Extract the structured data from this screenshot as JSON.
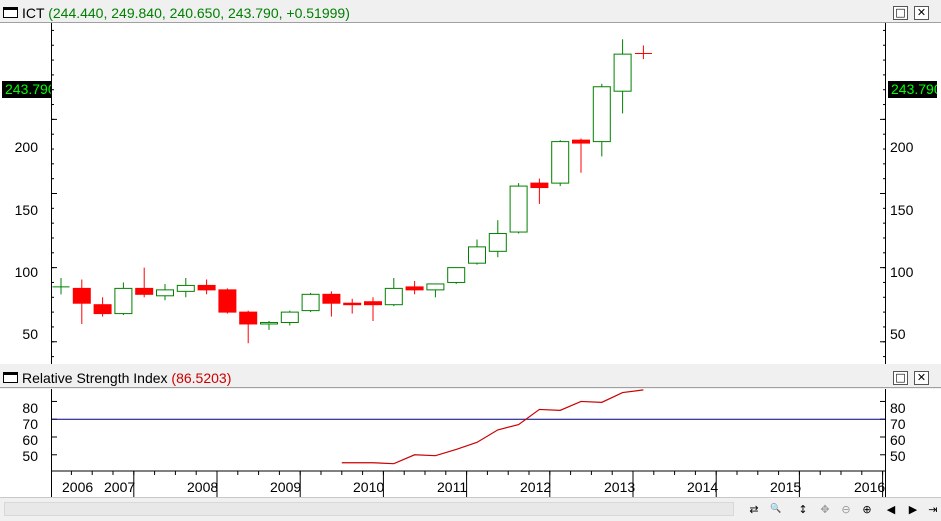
{
  "main_pane": {
    "symbol": "ICT",
    "ohlc_text": "(244.440, 249.840, 240.650, 243.790, +0.51999)",
    "last_price_label": "243.790",
    "y_ticks": [
      "200",
      "150",
      "100",
      "50"
    ],
    "buttons": {
      "restore": "□",
      "close": "✕"
    }
  },
  "rsi_pane": {
    "title": "Relative Strength Index",
    "value_text": "(86.5203)",
    "y_ticks": [
      "80",
      "70",
      "60",
      "50"
    ],
    "reference_level": 70,
    "buttons": {
      "restore": "□",
      "close": "✕"
    }
  },
  "x_axis": {
    "year_labels": [
      "2006",
      "2007",
      "2008",
      "2009",
      "2010",
      "2011",
      "2012",
      "2013",
      "2014",
      "2015",
      "2016"
    ]
  },
  "status_bar": {
    "buttons": [
      {
        "name": "sync-icon",
        "glyph": "⇄"
      },
      {
        "name": "zoom-icon",
        "glyph": "🔍"
      },
      {
        "name": "vertical-resize-icon",
        "glyph": "↕"
      },
      {
        "name": "pan-icon",
        "glyph": "✥"
      },
      {
        "name": "zoom-out-icon",
        "glyph": "⊖"
      },
      {
        "name": "zoom-in-icon",
        "glyph": "⊕"
      },
      {
        "name": "first-icon",
        "glyph": "◀"
      },
      {
        "name": "scroll-left-icon",
        "glyph": "◀"
      },
      {
        "name": "scroll-right-icon",
        "glyph": "▶"
      },
      {
        "name": "last-icon",
        "glyph": "⇥"
      }
    ]
  },
  "colors": {
    "up_candle": "#008000",
    "down_candle": "#ff0000",
    "rsi_line": "#cc0000",
    "reference_line": "#000080",
    "title_green": "#008000",
    "title_red": "#cc0000"
  },
  "chart_data": [
    {
      "type": "candlestick",
      "title": "ICT",
      "ylim": [
        35,
        265
      ],
      "y_ticks": [
        50,
        100,
        150,
        200
      ],
      "x_axis": "quarterly",
      "candles": [
        {
          "date": "2006 Q1",
          "o": 87,
          "h": 93,
          "l": 82,
          "c": 87
        },
        {
          "date": "2006 Q2",
          "o": 86,
          "h": 92,
          "l": 62,
          "c": 76
        },
        {
          "date": "2006 Q3",
          "o": 75,
          "h": 80,
          "l": 67,
          "c": 69
        },
        {
          "date": "2006 Q4",
          "o": 69,
          "h": 90,
          "l": 68,
          "c": 86
        },
        {
          "date": "2007 Q1",
          "o": 86,
          "h": 100,
          "l": 80,
          "c": 82
        },
        {
          "date": "2007 Q2",
          "o": 81,
          "h": 89,
          "l": 78,
          "c": 85
        },
        {
          "date": "2007 Q3",
          "o": 84,
          "h": 93,
          "l": 80,
          "c": 88
        },
        {
          "date": "2007 Q4",
          "o": 88,
          "h": 92,
          "l": 82,
          "c": 85
        },
        {
          "date": "2008 Q1",
          "o": 85,
          "h": 86,
          "l": 69,
          "c": 70
        },
        {
          "date": "2008 Q2",
          "o": 70,
          "h": 71,
          "l": 49,
          "c": 62
        },
        {
          "date": "2008 Q3",
          "o": 62,
          "h": 64,
          "l": 58,
          "c": 63
        },
        {
          "date": "2008 Q4",
          "o": 63,
          "h": 71,
          "l": 61,
          "c": 70
        },
        {
          "date": "2009 Q1",
          "o": 71,
          "h": 83,
          "l": 70,
          "c": 82
        },
        {
          "date": "2009 Q2",
          "o": 82,
          "h": 84,
          "l": 67,
          "c": 76
        },
        {
          "date": "2009 Q3",
          "o": 76,
          "h": 79,
          "l": 69,
          "c": 75
        },
        {
          "date": "2009 Q4",
          "o": 77,
          "h": 80,
          "l": 64,
          "c": 75
        },
        {
          "date": "2010 Q1",
          "o": 75,
          "h": 93,
          "l": 74,
          "c": 86
        },
        {
          "date": "2010 Q2",
          "o": 87,
          "h": 91,
          "l": 82,
          "c": 85
        },
        {
          "date": "2010 Q3",
          "o": 85,
          "h": 89,
          "l": 80,
          "c": 89
        },
        {
          "date": "2010 Q4",
          "o": 90,
          "h": 100,
          "l": 89,
          "c": 100
        },
        {
          "date": "2011 Q1",
          "o": 103,
          "h": 119,
          "l": 102,
          "c": 114
        },
        {
          "date": "2011 Q2",
          "o": 111,
          "h": 132,
          "l": 107,
          "c": 123
        },
        {
          "date": "2011 Q3",
          "o": 124,
          "h": 157,
          "l": 123,
          "c": 155
        },
        {
          "date": "2011 Q4",
          "o": 157,
          "h": 160,
          "l": 143,
          "c": 154
        },
        {
          "date": "2012 Q1",
          "o": 157,
          "h": 186,
          "l": 155,
          "c": 185
        },
        {
          "date": "2012 Q2",
          "o": 186,
          "h": 187,
          "l": 164,
          "c": 184
        },
        {
          "date": "2012 Q3",
          "o": 185,
          "h": 224,
          "l": 175,
          "c": 222
        },
        {
          "date": "2012 Q4",
          "o": 219,
          "h": 254,
          "l": 204,
          "c": 244
        },
        {
          "date": "2013 Q1",
          "o": 244.44,
          "h": 249.84,
          "l": 240.65,
          "c": 243.79
        }
      ]
    },
    {
      "type": "line",
      "title": "Relative Strength Index",
      "ylim": [
        42,
        87
      ],
      "y_ticks": [
        50,
        60,
        70,
        80
      ],
      "reference_lines": [
        70
      ],
      "series": [
        {
          "name": "Relative Strength Index",
          "points": [
            [
              "2009 Q3",
              45.5
            ],
            [
              "2009 Q4",
              45.5
            ],
            [
              "2010 Q1",
              45
            ],
            [
              "2010 Q2",
              50
            ],
            [
              "2010 Q3",
              49.5
            ],
            [
              "2010 Q4",
              53
            ],
            [
              "2011 Q1",
              57
            ],
            [
              "2011 Q2",
              64
            ],
            [
              "2011 Q3",
              67
            ],
            [
              "2011 Q4",
              75.5
            ],
            [
              "2012 Q1",
              75
            ],
            [
              "2012 Q2",
              80
            ],
            [
              "2012 Q3",
              79.5
            ],
            [
              "2012 Q4",
              85
            ],
            [
              "2013 Q1",
              86.5
            ]
          ]
        }
      ]
    }
  ]
}
